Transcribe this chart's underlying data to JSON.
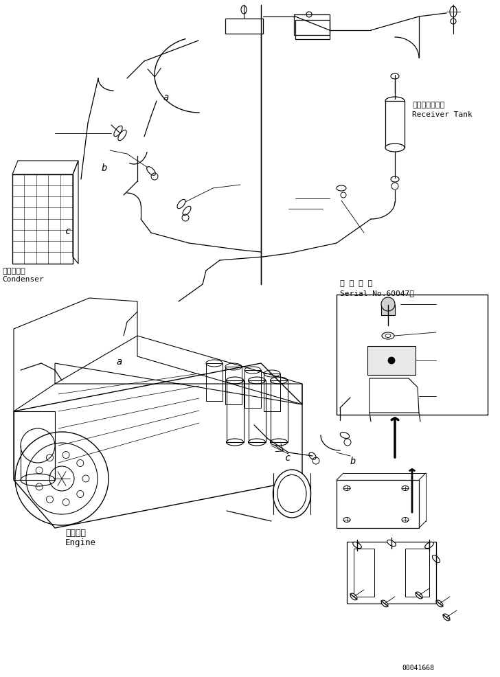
{
  "background_color": "#ffffff",
  "labels": {
    "condenser_jp": "コンデンサ",
    "condenser_en": "Condenser",
    "receiver_jp": "レシーバタンク",
    "receiver_en": "Receiver Tank",
    "engine_jp": "エンジン",
    "engine_en": "Engine",
    "serial_jp": "適 用 号 機",
    "serial_en": "Serial No.60047～",
    "part_id": "00041668"
  },
  "fig_width": 7.28,
  "fig_height": 9.87,
  "dpi": 100
}
